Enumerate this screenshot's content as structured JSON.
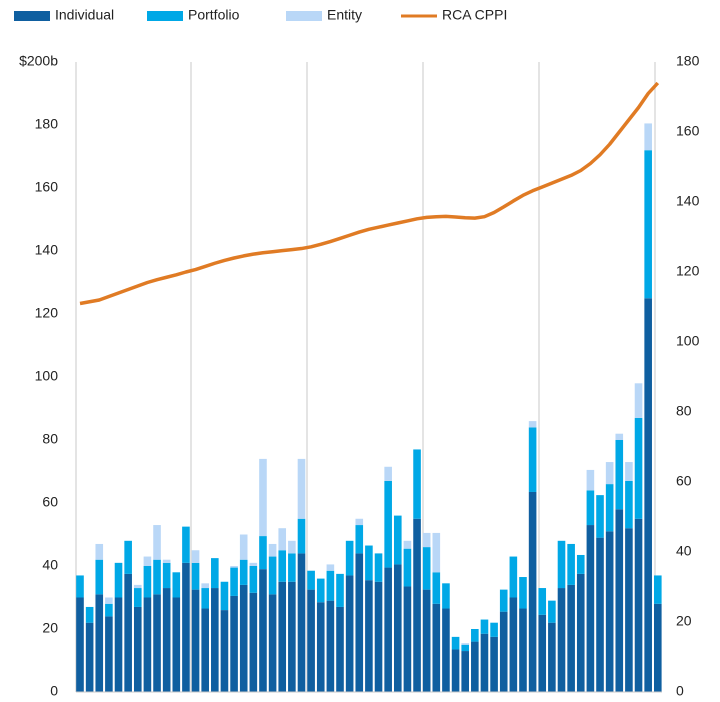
{
  "chart_data": {
    "type": "bar",
    "stacked": true,
    "categories": [
      null,
      null,
      null,
      null,
      null,
      null,
      null,
      null,
      null,
      null,
      null,
      null,
      null,
      null,
      null,
      null,
      null,
      null,
      null,
      null,
      null,
      null,
      null,
      null,
      null,
      null,
      null,
      null,
      null,
      null,
      null,
      null,
      null,
      null,
      null,
      null,
      null,
      null,
      null,
      null,
      null,
      null,
      null,
      null,
      null,
      null,
      null,
      null,
      null,
      null,
      null,
      null,
      null,
      null,
      null,
      null,
      null,
      null,
      null,
      null,
      null
    ],
    "series": [
      {
        "name": "Individual",
        "color": "#0f5fa0",
        "values": [
          30,
          22,
          31,
          24,
          30,
          37.5,
          27,
          30,
          31,
          33,
          30,
          41,
          32.5,
          26.5,
          33,
          26,
          30.5,
          34,
          31.5,
          39,
          31,
          35,
          35,
          44,
          32.5,
          28.5,
          29,
          27,
          37,
          44,
          35.5,
          35,
          39.5,
          40.5,
          33.5,
          55,
          32.5,
          28,
          26.5,
          13.5,
          13,
          16,
          18.5,
          17.5,
          25.5,
          30,
          26.5,
          63.5,
          24.5,
          22,
          33,
          34,
          37.5,
          53,
          49,
          51,
          58,
          52,
          55,
          125,
          28
        ]
      },
      {
        "name": "Portfolio",
        "color": "#00a8e6",
        "values": [
          7,
          5,
          11,
          4,
          11,
          10.5,
          6,
          10,
          11,
          8,
          8,
          11.5,
          8.5,
          6.5,
          9.5,
          9,
          9,
          8,
          8.5,
          10.5,
          12,
          10,
          9,
          11,
          6,
          7.5,
          9.5,
          10.5,
          11,
          9,
          11,
          9,
          27.5,
          15.5,
          12,
          22,
          13.5,
          10,
          8,
          4,
          2,
          4,
          4.5,
          4.5,
          7,
          13,
          10,
          20.5,
          8.5,
          7,
          15,
          13,
          6,
          11,
          13.5,
          15,
          22,
          15,
          32,
          47,
          9
        ]
      },
      {
        "name": "Entity",
        "color": "#b9d7f7",
        "values": [
          0,
          0,
          5,
          2,
          0,
          0,
          1,
          3,
          11,
          1,
          0,
          0,
          4,
          1.5,
          0,
          0,
          0.5,
          8,
          1,
          24.5,
          4,
          7,
          4,
          19,
          0,
          0,
          2,
          0,
          0,
          2,
          0,
          0,
          4.5,
          0,
          2.5,
          0,
          4.5,
          12.5,
          0,
          0,
          0.5,
          0,
          0,
          0,
          0,
          0,
          0,
          2,
          0,
          0,
          0,
          0,
          0,
          6.5,
          0,
          7,
          2,
          6,
          11,
          8.5,
          0
        ]
      },
      {
        "name": "RCA CPPI",
        "color": "#e07b24",
        "type": "line",
        "axis": "y2",
        "values": [
          111,
          111.5,
          112,
          113,
          114,
          115,
          116,
          117,
          117.8,
          118.5,
          119.2,
          120,
          120.7,
          121.6,
          122.5,
          123.3,
          124,
          124.6,
          125.1,
          125.5,
          125.8,
          126.1,
          126.4,
          126.7,
          127.2,
          127.9,
          128.7,
          129.6,
          130.5,
          131.4,
          132.2,
          132.8,
          133.4,
          134,
          134.6,
          135.2,
          135.6,
          135.8,
          135.9,
          135.7,
          135.5,
          135.4,
          135.8,
          137,
          138.6,
          140.3,
          141.9,
          143.2,
          144.3,
          145.4,
          146.5,
          147.6,
          149,
          151,
          153.5,
          156.5,
          160,
          163.5,
          167,
          171,
          174
        ]
      }
    ],
    "ylim": [
      0,
      200
    ],
    "yticks": [
      0,
      20,
      40,
      60,
      80,
      100,
      120,
      140,
      160,
      180,
      {
        "value": 200,
        "label": "$200b"
      }
    ],
    "y2lim": [
      0,
      180
    ],
    "y2ticks": [
      0,
      20,
      40,
      60,
      80,
      100,
      120,
      140,
      160,
      180
    ],
    "legend": "top-left"
  }
}
